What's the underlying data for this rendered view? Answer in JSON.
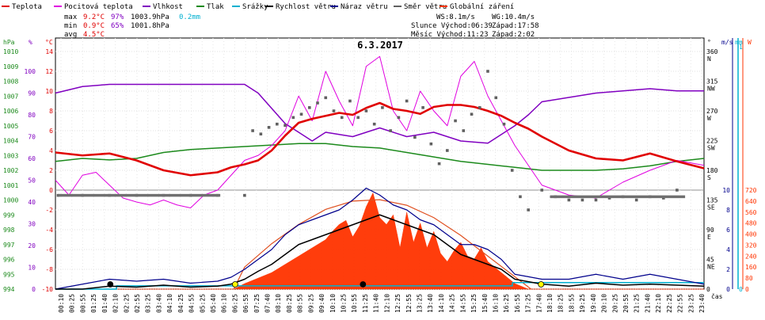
{
  "chart_data": {
    "type": "line",
    "title": "6.3.2017",
    "legend": [
      {
        "label": "Teplota",
        "color": "#e00000"
      },
      {
        "label": "Pocitová teplota",
        "color": "#e000e0"
      },
      {
        "label": "Vlhkost",
        "color": "#8000c0"
      },
      {
        "label": "Tlak",
        "color": "#1c8a1c"
      },
      {
        "label": "Srážky",
        "color": "#00b0d0"
      },
      {
        "label": "Rychlost větru",
        "color": "#000000"
      },
      {
        "label": "Náraz větru",
        "color": "#00008c"
      },
      {
        "label": "Směr větru",
        "color": "#606060"
      },
      {
        "label": "Globální záření",
        "color": "#ff3300"
      }
    ],
    "stats": {
      "rows": [
        {
          "label": "max",
          "temp": "9.2°C",
          "hum": "97%",
          "press": "1003.9hPa",
          "rain": "0.2mm"
        },
        {
          "label": "min",
          "temp": "0.9°C",
          "hum": "65%",
          "press": "1001.8hPa",
          "rain": ""
        },
        {
          "label": "avg",
          "temp": "4.5°C",
          "hum": "",
          "press": "",
          "rain": ""
        }
      ],
      "ws": "WS:8.1m/s",
      "wg": "WG:10.4m/s",
      "sun_rise": "Slunce  Východ:06:39",
      "sun_set": "Západ:17:58",
      "moon_rise": "Měsíc  Východ:11:23",
      "moon_set": "Západ:2:02"
    },
    "axes": {
      "hpa_unit": "hPa",
      "pct_unit": "%",
      "c_unit": "°C",
      "x_unit": "čas",
      "deg_unit": "°",
      "ms_unit": "m/s",
      "mm_unit": "mm",
      "w_unit": "W",
      "hpa_ticks": [
        "1010",
        "1009",
        "1008",
        "1007",
        "1006",
        "1005",
        "1004",
        "1003",
        "1002",
        "1001",
        "1000",
        "999",
        "998",
        "997",
        "996",
        "995",
        "994"
      ],
      "pct_ticks": [
        "100",
        "90",
        "80",
        "70",
        "60",
        "50",
        "40",
        "30",
        "20",
        "10",
        "0"
      ],
      "c_ticks": [
        "14",
        "12",
        "10",
        "8",
        "6",
        "4",
        "2",
        "0",
        "-2",
        "-4",
        "-6",
        "-8",
        "-10"
      ],
      "dir_ticks": [
        [
          "360",
          "N"
        ],
        [
          "315",
          "NW"
        ],
        [
          "270",
          "W"
        ],
        [
          "225",
          "SW"
        ],
        [
          "180",
          "S"
        ],
        [
          "135",
          "SE"
        ],
        [
          "90",
          "E"
        ],
        [
          "45",
          "NE"
        ],
        [
          "0",
          ""
        ]
      ],
      "ms_ticks": [
        "10",
        "8",
        "6",
        "4",
        "2",
        "0"
      ],
      "mm_ticks": [
        "1",
        "0"
      ],
      "w_ticks": [
        "720",
        "640",
        "560",
        "480",
        "400",
        "320",
        "240",
        "160",
        "80",
        "0"
      ],
      "time_ticks": [
        "00:10",
        "00:25",
        "00:55",
        "01:25",
        "01:40",
        "02:10",
        "02:25",
        "02:55",
        "03:25",
        "03:40",
        "04:10",
        "04:25",
        "04:55",
        "05:25",
        "05:40",
        "06:10",
        "06:25",
        "06:55",
        "07:25",
        "07:40",
        "08:10",
        "08:25",
        "08:55",
        "09:25",
        "09:40",
        "10:10",
        "10:25",
        "10:55",
        "11:25",
        "11:40",
        "12:10",
        "12:25",
        "12:55",
        "13:25",
        "13:40",
        "14:10",
        "14:25",
        "14:55",
        "15:25",
        "15:40",
        "16:10",
        "16:25",
        "16:55",
        "17:25",
        "17:40",
        "18:10",
        "18:25",
        "18:55",
        "19:25",
        "19:40",
        "20:10",
        "20:25",
        "20:55",
        "21:25",
        "21:40",
        "22:10",
        "22:25",
        "22:55",
        "23:25",
        "23:40"
      ]
    },
    "ranges": {
      "temp_c": [
        -10,
        15
      ],
      "humidity_pct": [
        0,
        100
      ],
      "pressure_hpa": [
        994,
        1010.5
      ],
      "wind_ms": [
        0,
        10
      ],
      "direction_deg": [
        0,
        360
      ],
      "rain_mm": [
        0,
        1
      ],
      "radiation_w": [
        0,
        720
      ]
    },
    "series": [
      {
        "name": "Teplota",
        "unit": "°C",
        "x": [
          0,
          1,
          2,
          3,
          4,
          5,
          6,
          6.5,
          7,
          7.5,
          8,
          8.5,
          9,
          9.5,
          10,
          10.5,
          11,
          11.5,
          12,
          12.5,
          13,
          13.5,
          14,
          14.5,
          15,
          15.5,
          16,
          16.5,
          17,
          17.5,
          18,
          19,
          20,
          21,
          22,
          23,
          24
        ],
        "y": [
          3.8,
          3.5,
          3.7,
          3.0,
          2.0,
          1.5,
          1.8,
          2.3,
          2.6,
          3.0,
          4.0,
          5.5,
          6.8,
          7.2,
          7.5,
          7.8,
          7.6,
          8.3,
          8.8,
          8.2,
          8.0,
          7.7,
          8.4,
          8.6,
          8.6,
          8.4,
          8.0,
          7.5,
          6.8,
          6.2,
          5.4,
          4.0,
          3.2,
          3.0,
          3.7,
          2.9,
          2.2
        ]
      },
      {
        "name": "Pocitová teplota",
        "unit": "°C",
        "x": [
          0,
          0.5,
          1,
          1.5,
          2,
          2.5,
          3,
          3.5,
          4,
          4.5,
          5,
          5.5,
          6,
          6.5,
          7,
          7.5,
          8,
          8.5,
          9,
          9.5,
          10,
          10.5,
          11,
          11.5,
          12,
          12.5,
          13,
          13.5,
          14,
          14.5,
          15,
          15.5,
          16,
          16.5,
          17,
          17.5,
          18,
          19,
          20,
          21,
          22,
          23,
          24
        ],
        "y": [
          1.0,
          -0.5,
          1.5,
          1.8,
          0.5,
          -0.8,
          -1.2,
          -1.5,
          -1.0,
          -1.5,
          -1.8,
          -0.5,
          0.0,
          1.5,
          3.0,
          3.5,
          4.5,
          6.0,
          9.5,
          7.0,
          12.0,
          9.0,
          6.5,
          12.5,
          13.5,
          8.0,
          6.0,
          10.0,
          8.0,
          6.5,
          11.5,
          13.0,
          9.5,
          7.0,
          4.5,
          2.5,
          0.5,
          -0.5,
          -0.8,
          0.8,
          2.0,
          3.0,
          2.5
        ]
      },
      {
        "name": "Vlhkost",
        "unit": "%",
        "x": [
          0,
          1,
          2,
          3,
          4,
          5,
          6,
          7,
          7.5,
          8,
          8.5,
          9,
          9.5,
          10,
          11,
          12,
          13,
          14,
          15,
          16,
          16.5,
          17,
          17.5,
          18,
          19,
          20,
          21,
          22,
          23,
          24
        ],
        "y": [
          90,
          93,
          94,
          94,
          94,
          94,
          94,
          94,
          90,
          83,
          76,
          72,
          68,
          72,
          70,
          74,
          70,
          72,
          68,
          67,
          71,
          75,
          80,
          86,
          88,
          90,
          91,
          92,
          91,
          91
        ]
      },
      {
        "name": "Tlak",
        "unit": "hPa",
        "x": [
          0,
          1,
          2,
          3,
          4,
          5,
          6,
          7,
          8,
          9,
          10,
          11,
          12,
          13,
          14,
          15,
          16,
          17,
          18,
          19,
          20,
          21,
          22,
          23,
          24
        ],
        "y": [
          1002.6,
          1002.8,
          1002.7,
          1002.8,
          1003.2,
          1003.4,
          1003.5,
          1003.6,
          1003.7,
          1003.8,
          1003.8,
          1003.6,
          1003.5,
          1003.2,
          1002.9,
          1002.6,
          1002.4,
          1002.2,
          1002.0,
          1002.0,
          1002.0,
          1002.1,
          1002.3,
          1002.6,
          1002.8
        ]
      },
      {
        "name": "Srážky",
        "unit": "mm",
        "x": [
          0,
          2.25,
          2.26,
          16.9,
          16.91,
          24
        ],
        "y": [
          0,
          0,
          0.1,
          0.1,
          0.2,
          0.2
        ]
      },
      {
        "name": "Rychlost větru",
        "unit": "m/s",
        "x": [
          0,
          1,
          2,
          3,
          4,
          5,
          6,
          6.5,
          7,
          7.5,
          8,
          8.5,
          9,
          9.5,
          10,
          10.5,
          11,
          11.5,
          12,
          12.5,
          13,
          13.5,
          14,
          14.5,
          15,
          15.5,
          16,
          16.5,
          17,
          18,
          19,
          20,
          21,
          22,
          23,
          24
        ],
        "y": [
          0,
          0,
          0.3,
          0.2,
          0.4,
          0.2,
          0.3,
          0.5,
          1.0,
          1.8,
          2.5,
          3.5,
          4.5,
          5.0,
          5.5,
          6.0,
          6.5,
          7.0,
          7.5,
          7.0,
          6.5,
          6.0,
          5.5,
          4.5,
          3.5,
          3.0,
          2.5,
          2.0,
          1.0,
          0.5,
          0.3,
          0.6,
          0.4,
          0.5,
          0.4,
          0.3
        ]
      },
      {
        "name": "Náraz větru",
        "unit": "m/s",
        "x": [
          0,
          1,
          2,
          3,
          4,
          5,
          6,
          6.5,
          7,
          7.5,
          8,
          8.5,
          9,
          9.5,
          10,
          10.5,
          11,
          11.5,
          12,
          12.5,
          13,
          13.5,
          14,
          14.5,
          15,
          15.5,
          16,
          16.5,
          17,
          18,
          19,
          20,
          21,
          22,
          23,
          24
        ],
        "y": [
          0,
          0.5,
          1.0,
          0.8,
          1.0,
          0.6,
          0.8,
          1.2,
          2.0,
          3.0,
          4.0,
          5.5,
          6.5,
          7.0,
          7.5,
          8.0,
          9.0,
          10.2,
          9.5,
          8.5,
          8.0,
          7.0,
          6.5,
          5.5,
          4.5,
          4.5,
          4.0,
          3.0,
          1.5,
          1.0,
          1.0,
          1.5,
          1.0,
          1.5,
          1.0,
          0.5
        ]
      },
      {
        "name": "Směr větru",
        "unit": "°",
        "x": [
          0.1,
          1,
          2,
          3,
          4,
          5,
          6,
          7,
          7.3,
          7.6,
          7.9,
          8.2,
          8.5,
          8.8,
          9.1,
          9.4,
          9.7,
          10,
          10.3,
          10.6,
          10.9,
          11.2,
          11.5,
          11.8,
          12.1,
          12.4,
          12.7,
          13,
          13.3,
          13.6,
          13.9,
          14.2,
          14.5,
          14.8,
          15.1,
          15.4,
          15.7,
          16,
          16.3,
          16.6,
          16.9,
          17.2,
          17.5,
          18,
          18.5,
          19,
          19.5,
          20,
          20.5,
          21,
          21.5,
          22,
          22.5,
          23
        ],
        "y": [
          142,
          142,
          142,
          142,
          142,
          142,
          142,
          142,
          240,
          235,
          245,
          250,
          248,
          260,
          265,
          275,
          282,
          290,
          270,
          260,
          285,
          260,
          270,
          250,
          275,
          240,
          260,
          285,
          230,
          275,
          220,
          190,
          210,
          255,
          240,
          265,
          275,
          330,
          290,
          250,
          180,
          140,
          120,
          150,
          140,
          135,
          135,
          135,
          138,
          140,
          135,
          140,
          138,
          150
        ]
      },
      {
        "name": "Globální záření",
        "unit": "W",
        "x": [
          0,
          6.6,
          7,
          7.5,
          8,
          8.5,
          9,
          9.5,
          10,
          10.25,
          10.5,
          10.75,
          11,
          11.25,
          11.5,
          11.75,
          12,
          12.25,
          12.5,
          12.75,
          13,
          13.25,
          13.5,
          13.75,
          14,
          14.25,
          14.5,
          14.75,
          15,
          15.25,
          15.5,
          15.75,
          16,
          16.5,
          17,
          17.5,
          24
        ],
        "y": [
          0,
          0,
          40,
          80,
          120,
          180,
          240,
          300,
          360,
          420,
          470,
          500,
          380,
          460,
          600,
          700,
          520,
          470,
          540,
          300,
          560,
          340,
          480,
          300,
          420,
          260,
          200,
          280,
          340,
          240,
          220,
          300,
          200,
          120,
          40,
          0,
          0
        ]
      },
      {
        "name": "Globální záření (max)",
        "unit": "W",
        "x": [
          6.6,
          7,
          8,
          9,
          10,
          11,
          12,
          13,
          14,
          15,
          16,
          17,
          17.6
        ],
        "y": [
          0,
          160,
          330,
          470,
          580,
          640,
          650,
          610,
          520,
          390,
          240,
          90,
          0
        ]
      }
    ],
    "markers": [
      {
        "type": "moonset",
        "time": 2.03,
        "color": "#000000"
      },
      {
        "type": "sunrise",
        "time": 6.65,
        "color": "#ffff00"
      },
      {
        "type": "moonrise",
        "time": 11.38,
        "color": "#000000"
      },
      {
        "type": "sunset",
        "time": 17.97,
        "color": "#ffff00"
      }
    ]
  }
}
